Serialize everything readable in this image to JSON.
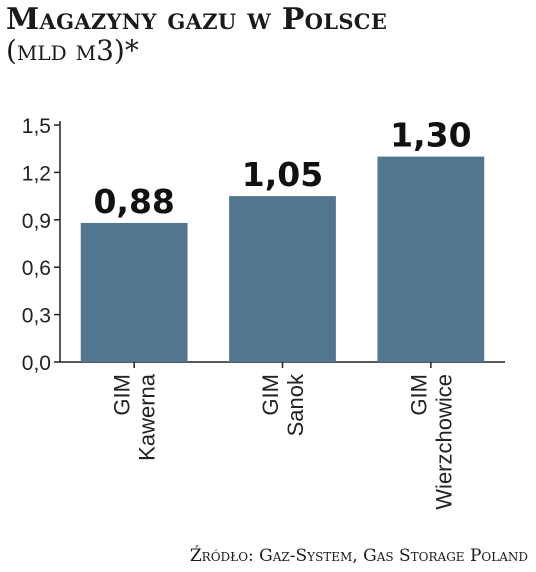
{
  "chart_data": {
    "type": "bar",
    "title": "Magazyny gazu w Polsce",
    "subtitle": "(mld m3)*",
    "categories": [
      [
        "GIM",
        "Kawerna"
      ],
      [
        "GIM",
        "Sanok"
      ],
      [
        "GIM",
        "Wierzchowice"
      ]
    ],
    "values": [
      0.88,
      1.05,
      1.3
    ],
    "data_labels": [
      "0,88",
      "1,05",
      "1,30"
    ],
    "ylim": [
      0,
      1.5
    ],
    "yticks": [
      0.0,
      0.3,
      0.6,
      0.9,
      1.2,
      1.5
    ],
    "ytick_labels": [
      "0,0",
      "0,3",
      "0,6",
      "0,9",
      "1,2",
      "1,5"
    ],
    "xlabel": "",
    "ylabel": "",
    "grid": false,
    "bar_color": "#527590",
    "source": "Źródło: Gaz-System, Gas Storage Poland"
  }
}
